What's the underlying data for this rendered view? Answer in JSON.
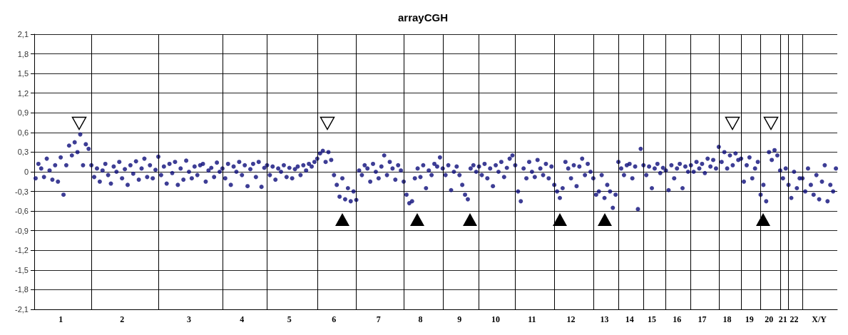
{
  "chart_data": {
    "type": "scatter",
    "title": "arrayCGH",
    "marker": "circle",
    "grid": "y",
    "ylim": [
      -2.1,
      2.1
    ],
    "yticks": [
      {
        "value": -2.1,
        "label": "-2,1"
      },
      {
        "value": -1.8,
        "label": "-1,8"
      },
      {
        "value": -1.5,
        "label": "-1,5"
      },
      {
        "value": -1.2,
        "label": "-1,2"
      },
      {
        "value": -0.9,
        "label": "-0,9"
      },
      {
        "value": -0.6,
        "label": "-0,6"
      },
      {
        "value": -0.3,
        "label": "-0,3"
      },
      0,
      {
        "value": 0.3,
        "label": "0,3"
      },
      {
        "value": 0.6,
        "label": "0,6"
      },
      {
        "value": 0.9,
        "label": "0,9"
      },
      {
        "value": 1.2,
        "label": "1,2"
      },
      {
        "value": 1.5,
        "label": "1,5"
      },
      {
        "value": 1.8,
        "label": "1,8"
      },
      {
        "value": 2.1,
        "label": "2,1"
      }
    ],
    "categories": [
      null,
      null,
      null,
      null,
      null,
      null,
      null,
      null,
      null,
      "1",
      null,
      null,
      null,
      null,
      null,
      null,
      null,
      null,
      null,
      null,
      null,
      null,
      null,
      null,
      null,
      null,
      null,
      null,
      null,
      null,
      null,
      "2",
      null,
      null,
      null,
      null,
      null,
      null,
      null,
      null,
      null,
      null,
      null,
      null,
      null,
      null,
      null,
      null,
      null,
      null,
      null,
      null,
      null,
      null,
      null,
      "3",
      null,
      null,
      null,
      null,
      null,
      null,
      null,
      null,
      null,
      null,
      null,
      null,
      null,
      null,
      null,
      null,
      null,
      null,
      "4",
      null,
      null,
      null,
      null,
      null,
      null,
      null,
      null,
      null,
      null,
      null,
      null,
      null,
      null,
      null,
      null,
      "5",
      null,
      null,
      null,
      null,
      null,
      null,
      null,
      null,
      null,
      null,
      null,
      null,
      null,
      null,
      null,
      "6",
      null,
      null,
      null,
      null,
      null,
      null,
      null,
      null,
      null,
      null,
      null,
      null,
      null,
      null,
      null,
      "7",
      null,
      null,
      null,
      null,
      null,
      null,
      null,
      null,
      null,
      null,
      null,
      null,
      null,
      null,
      "8",
      null,
      null,
      null,
      null,
      null,
      null,
      null,
      null,
      null,
      null,
      null,
      null,
      null,
      "9",
      null,
      null,
      null,
      null,
      null,
      null,
      null,
      null,
      null,
      null,
      null,
      null,
      "10",
      null,
      null,
      null,
      null,
      null,
      null,
      null,
      null,
      null,
      null,
      null,
      null,
      "11",
      null,
      null,
      null,
      null,
      null,
      null,
      null,
      null,
      null,
      null,
      null,
      null,
      null,
      "12",
      null,
      null,
      null,
      null,
      null,
      null,
      null,
      null,
      null,
      null,
      null,
      "13",
      null,
      null,
      null,
      null,
      null,
      null,
      null,
      null,
      "14",
      null,
      null,
      null,
      null,
      null,
      null,
      null,
      "15",
      null,
      null,
      null,
      null,
      null,
      null,
      null,
      null,
      "16",
      null,
      null,
      null,
      null,
      null,
      null,
      null,
      null,
      "17",
      null,
      null,
      null,
      null,
      null,
      null,
      null,
      null,
      "18",
      null,
      null,
      null,
      null,
      null,
      null,
      null,
      "19",
      null,
      null,
      null,
      null,
      null,
      null,
      "20",
      null,
      null,
      null,
      null,
      "21",
      null,
      null,
      null,
      "22",
      null,
      null,
      null,
      null,
      null,
      null,
      null,
      null,
      "X/Y",
      null,
      null,
      null,
      null,
      null,
      null
    ],
    "series": [
      {
        "color": "#0d0d7a",
        "values": [
          -0.1,
          0.12,
          0.05,
          -0.08,
          0.2,
          0.02,
          -0.12,
          0.1,
          -0.15,
          0.22,
          -0.35,
          0.1,
          0.4,
          0.25,
          0.45,
          0.3,
          0.57,
          0.1,
          0.42,
          0.35,
          0.1,
          -0.08,
          0.05,
          -0.15,
          0.02,
          0.12,
          -0.05,
          -0.18,
          0.08,
          0,
          0.15,
          -0.1,
          0.04,
          -0.2,
          0.1,
          -0.03,
          0.16,
          -0.12,
          0.05,
          0.2,
          -0.08,
          0.1,
          -0.1,
          0.03,
          0.23,
          -0.05,
          0.08,
          -0.18,
          0.12,
          -0.02,
          0.15,
          -0.2,
          0.05,
          -0.12,
          0.17,
          0,
          -0.1,
          0.08,
          -0.05,
          0.1,
          0.12,
          -0.15,
          0.02,
          0.06,
          -0.08,
          0.14,
          0,
          0.05,
          -0.1,
          0.12,
          -0.2,
          0.08,
          0,
          0.15,
          -0.05,
          0.1,
          -0.22,
          0.04,
          0.12,
          -0.08,
          0.15,
          -0.23,
          0.06,
          0.1,
          -0.05,
          0.08,
          -0.12,
          0.05,
          0,
          0.1,
          -0.08,
          0.06,
          -0.1,
          0.04,
          0.08,
          -0.05,
          0.1,
          0.02,
          0.12,
          0.08,
          0.15,
          0.2,
          0.28,
          0.32,
          0.15,
          0.3,
          0.18,
          -0.05,
          -0.2,
          -0.38,
          -0.1,
          -0.42,
          -0.25,
          -0.45,
          -0.3,
          -0.43,
          0.02,
          -0.05,
          0.1,
          0.05,
          -0.15,
          0.12,
          0,
          -0.1,
          0.08,
          0.25,
          -0.05,
          0.15,
          0.05,
          -0.12,
          0.1,
          0.02,
          -0.15,
          -0.35,
          -0.48,
          -0.45,
          -0.1,
          0.05,
          -0.08,
          0.1,
          -0.25,
          0.02,
          -0.05,
          0.12,
          0.08,
          0.22,
          0.05,
          -0.05,
          0.1,
          -0.28,
          0,
          0.08,
          -0.05,
          -0.2,
          -0.35,
          -0.42,
          0.05,
          0.1,
          0,
          0.08,
          -0.05,
          0.12,
          -0.1,
          0.05,
          -0.22,
          0.1,
          0,
          0.15,
          -0.08,
          0.06,
          0.2,
          0.25,
          0.1,
          -0.3,
          -0.45,
          0.05,
          -0.1,
          0.15,
          0,
          -0.08,
          0.18,
          0.05,
          -0.05,
          0.12,
          -0.1,
          0.08,
          -0.2,
          -0.3,
          -0.4,
          -0.25,
          0.15,
          0.05,
          -0.1,
          0.1,
          -0.22,
          0.08,
          0.2,
          -0.05,
          0.12,
          0,
          -0.1,
          -0.35,
          -0.3,
          -0.05,
          -0.4,
          -0.2,
          -0.3,
          -0.55,
          -0.35,
          0.15,
          0.05,
          -0.05,
          0.1,
          0.12,
          -0.1,
          0.08,
          -0.57,
          0.35,
          0.1,
          -0.05,
          0.08,
          -0.25,
          0.05,
          0.12,
          -0.02,
          0.06,
          0.02,
          -0.28,
          0.1,
          -0.1,
          0.05,
          0.12,
          -0.25,
          0.08,
          0,
          0.1,
          0,
          0.15,
          0.05,
          0.12,
          -0.02,
          0.2,
          0.08,
          0.18,
          0.05,
          0.38,
          0.15,
          0.3,
          0.05,
          0.25,
          0.1,
          0.28,
          0.18,
          0.2,
          -0.15,
          0.1,
          0.22,
          -0.1,
          0.05,
          0.15,
          -0.35,
          -0.2,
          -0.45,
          0.3,
          0.18,
          0.33,
          0.25,
          0.02,
          -0.1,
          0.05,
          -0.2,
          -0.4,
          0,
          -0.25,
          -0.1,
          -0.1,
          -0.3,
          0.05,
          -0.2,
          -0.35,
          -0.05,
          -0.42,
          -0.15,
          0.1,
          -0.45,
          -0.2,
          -0.3,
          0.05
        ]
      }
    ]
  }
}
